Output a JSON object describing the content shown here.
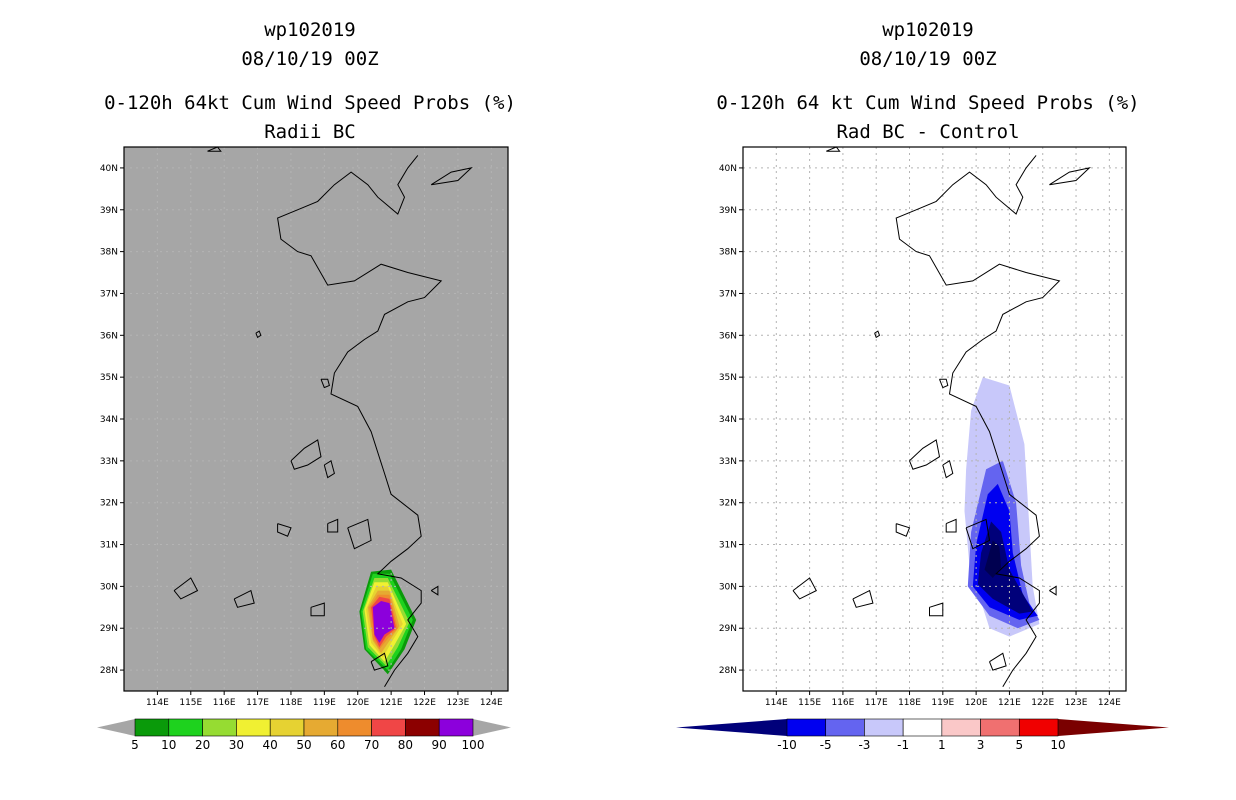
{
  "chart_data": [
    {
      "type": "heatmap",
      "title": [
        "wp102019",
        "08/10/19 00Z",
        "0-120h 64kt Cum Wind Speed Probs (%)",
        "Radii BC"
      ],
      "background": "#a6a6a6",
      "xlim": [
        113,
        124.5
      ],
      "ylim": [
        27.5,
        40.5
      ],
      "x_ticks": [
        "114E",
        "115E",
        "116E",
        "117E",
        "118E",
        "119E",
        "120E",
        "121E",
        "122E",
        "123E",
        "124E"
      ],
      "y_ticks": [
        "28N",
        "29N",
        "30N",
        "31N",
        "32N",
        "33N",
        "34N",
        "35N",
        "36N",
        "37N",
        "38N",
        "39N",
        "40N"
      ],
      "colorbar": {
        "labels": [
          "5",
          "10",
          "20",
          "30",
          "40",
          "50",
          "60",
          "70",
          "80",
          "90",
          "100"
        ],
        "colors": [
          "#0a9a0a",
          "#1ed21e",
          "#96dc32",
          "#f0f032",
          "#e6d232",
          "#e6aa32",
          "#ee8c2d",
          "#f04646",
          "#8c0000",
          "#8c00dc"
        ]
      },
      "field": [
        {
          "level": 5,
          "color": "#0a9a0a",
          "points": [
            [
              120.05,
              29.4
            ],
            [
              120.4,
              30.35
            ],
            [
              121.0,
              30.4
            ],
            [
              121.75,
              29.2
            ],
            [
              121.4,
              28.5
            ],
            [
              120.9,
              27.9
            ],
            [
              120.2,
              28.5
            ]
          ]
        },
        {
          "level": 10,
          "color": "#1ed21e",
          "points": [
            [
              120.1,
              29.4
            ],
            [
              120.45,
              30.3
            ],
            [
              120.95,
              30.3
            ],
            [
              121.65,
              29.2
            ],
            [
              121.3,
              28.5
            ],
            [
              120.9,
              28.0
            ],
            [
              120.25,
              28.5
            ]
          ]
        },
        {
          "level": 20,
          "color": "#96dc32",
          "points": [
            [
              120.15,
              29.4
            ],
            [
              120.5,
              30.2
            ],
            [
              120.9,
              30.2
            ],
            [
              121.55,
              29.15
            ],
            [
              121.2,
              28.55
            ],
            [
              120.85,
              28.1
            ],
            [
              120.3,
              28.55
            ]
          ]
        },
        {
          "level": 30,
          "color": "#f0f032",
          "points": [
            [
              120.2,
              29.45
            ],
            [
              120.5,
              30.1
            ],
            [
              120.9,
              30.1
            ],
            [
              121.45,
              29.1
            ],
            [
              121.1,
              28.6
            ],
            [
              120.8,
              28.2
            ],
            [
              120.35,
              28.6
            ]
          ]
        },
        {
          "level": 40,
          "color": "#e6d232",
          "points": [
            [
              120.25,
              29.45
            ],
            [
              120.55,
              30.0
            ],
            [
              120.9,
              30.0
            ],
            [
              121.35,
              29.1
            ],
            [
              121.0,
              28.65
            ],
            [
              120.75,
              28.3
            ],
            [
              120.4,
              28.65
            ]
          ]
        },
        {
          "level": 50,
          "color": "#e6aa32",
          "points": [
            [
              120.3,
              29.5
            ],
            [
              120.6,
              29.9
            ],
            [
              120.95,
              29.9
            ],
            [
              121.25,
              29.05
            ],
            [
              120.95,
              28.7
            ],
            [
              120.7,
              28.4
            ],
            [
              120.45,
              28.7
            ]
          ]
        },
        {
          "level": 60,
          "color": "#ee8c2d",
          "points": [
            [
              120.35,
              29.5
            ],
            [
              120.6,
              29.8
            ],
            [
              120.95,
              29.8
            ],
            [
              121.2,
              29.0
            ],
            [
              120.9,
              28.75
            ],
            [
              120.65,
              28.5
            ],
            [
              120.45,
              28.75
            ]
          ]
        },
        {
          "level": 70,
          "color": "#f04646",
          "points": [
            [
              120.4,
              29.5
            ],
            [
              120.65,
              29.75
            ],
            [
              120.95,
              29.7
            ],
            [
              121.15,
              29.0
            ],
            [
              120.85,
              28.8
            ],
            [
              120.65,
              28.55
            ],
            [
              120.5,
              28.8
            ]
          ]
        },
        {
          "level": 90,
          "color": "#8c00dc",
          "points": [
            [
              120.45,
              29.5
            ],
            [
              120.7,
              29.65
            ],
            [
              120.95,
              29.6
            ],
            [
              121.1,
              29.0
            ],
            [
              120.8,
              28.85
            ],
            [
              120.65,
              28.65
            ],
            [
              120.5,
              28.85
            ]
          ]
        }
      ]
    },
    {
      "type": "heatmap",
      "title": [
        "wp102019",
        "08/10/19 00Z",
        "0-120h 64 kt Cum Wind Speed Probs (%)",
        "Rad BC - Control"
      ],
      "background": "#ffffff",
      "xlim": [
        113,
        124.5
      ],
      "ylim": [
        27.5,
        40.5
      ],
      "x_ticks": [
        "114E",
        "115E",
        "116E",
        "117E",
        "118E",
        "119E",
        "120E",
        "121E",
        "122E",
        "123E",
        "124E"
      ],
      "y_ticks": [
        "28N",
        "29N",
        "30N",
        "31N",
        "32N",
        "33N",
        "34N",
        "35N",
        "36N",
        "37N",
        "38N",
        "39N",
        "40N"
      ],
      "colorbar": {
        "labels": [
          "-10",
          "-5",
          "-3",
          "-1",
          "1",
          "3",
          "5",
          "10"
        ],
        "colors": [
          "#00007a",
          "#0000f0",
          "#6464f0",
          "#c8c8fa",
          "#ffffff",
          "#fac8c8",
          "#f07070",
          "#f00000",
          "#7a0000"
        ]
      },
      "field": [
        {
          "level": -1,
          "color": "#c8c8fa",
          "points": [
            [
              119.7,
              32.8
            ],
            [
              119.85,
              34.2
            ],
            [
              120.2,
              35.0
            ],
            [
              121.0,
              34.8
            ],
            [
              121.45,
              33.4
            ],
            [
              121.6,
              31.4
            ],
            [
              121.7,
              30.0
            ],
            [
              121.9,
              29.1
            ],
            [
              121.0,
              28.8
            ],
            [
              120.4,
              29.0
            ],
            [
              119.8,
              30.5
            ],
            [
              119.65,
              31.8
            ]
          ]
        },
        {
          "level": -3,
          "color": "#6464f0",
          "points": [
            [
              119.75,
              30.0
            ],
            [
              119.85,
              31.3
            ],
            [
              120.3,
              32.8
            ],
            [
              120.8,
              33.0
            ],
            [
              121.2,
              32.0
            ],
            [
              121.35,
              30.5
            ],
            [
              121.6,
              29.6
            ],
            [
              121.9,
              29.2
            ],
            [
              121.25,
              29.0
            ],
            [
              120.4,
              29.3
            ]
          ]
        },
        {
          "level": -5,
          "color": "#0000f0",
          "points": [
            [
              119.9,
              30.0
            ],
            [
              120.0,
              31.0
            ],
            [
              120.35,
              32.2
            ],
            [
              120.65,
              32.45
            ],
            [
              121.0,
              31.8
            ],
            [
              121.1,
              30.8
            ],
            [
              121.4,
              29.8
            ],
            [
              121.85,
              29.3
            ],
            [
              121.3,
              29.2
            ],
            [
              120.4,
              29.5
            ]
          ]
        },
        {
          "level": -10,
          "color": "#00007a",
          "points": [
            [
              120.05,
              30.05
            ],
            [
              120.15,
              30.8
            ],
            [
              120.45,
              31.55
            ],
            [
              120.75,
              31.3
            ],
            [
              121.0,
              30.4
            ],
            [
              121.35,
              29.9
            ],
            [
              121.7,
              29.4
            ],
            [
              121.3,
              29.35
            ],
            [
              120.5,
              29.7
            ]
          ]
        },
        {
          "level": -15,
          "color": "#000050",
          "points": [
            [
              120.25,
              30.4
            ],
            [
              120.5,
              31.1
            ],
            [
              120.7,
              30.95
            ],
            [
              120.75,
              30.45
            ],
            [
              120.5,
              30.2
            ]
          ]
        }
      ]
    }
  ]
}
